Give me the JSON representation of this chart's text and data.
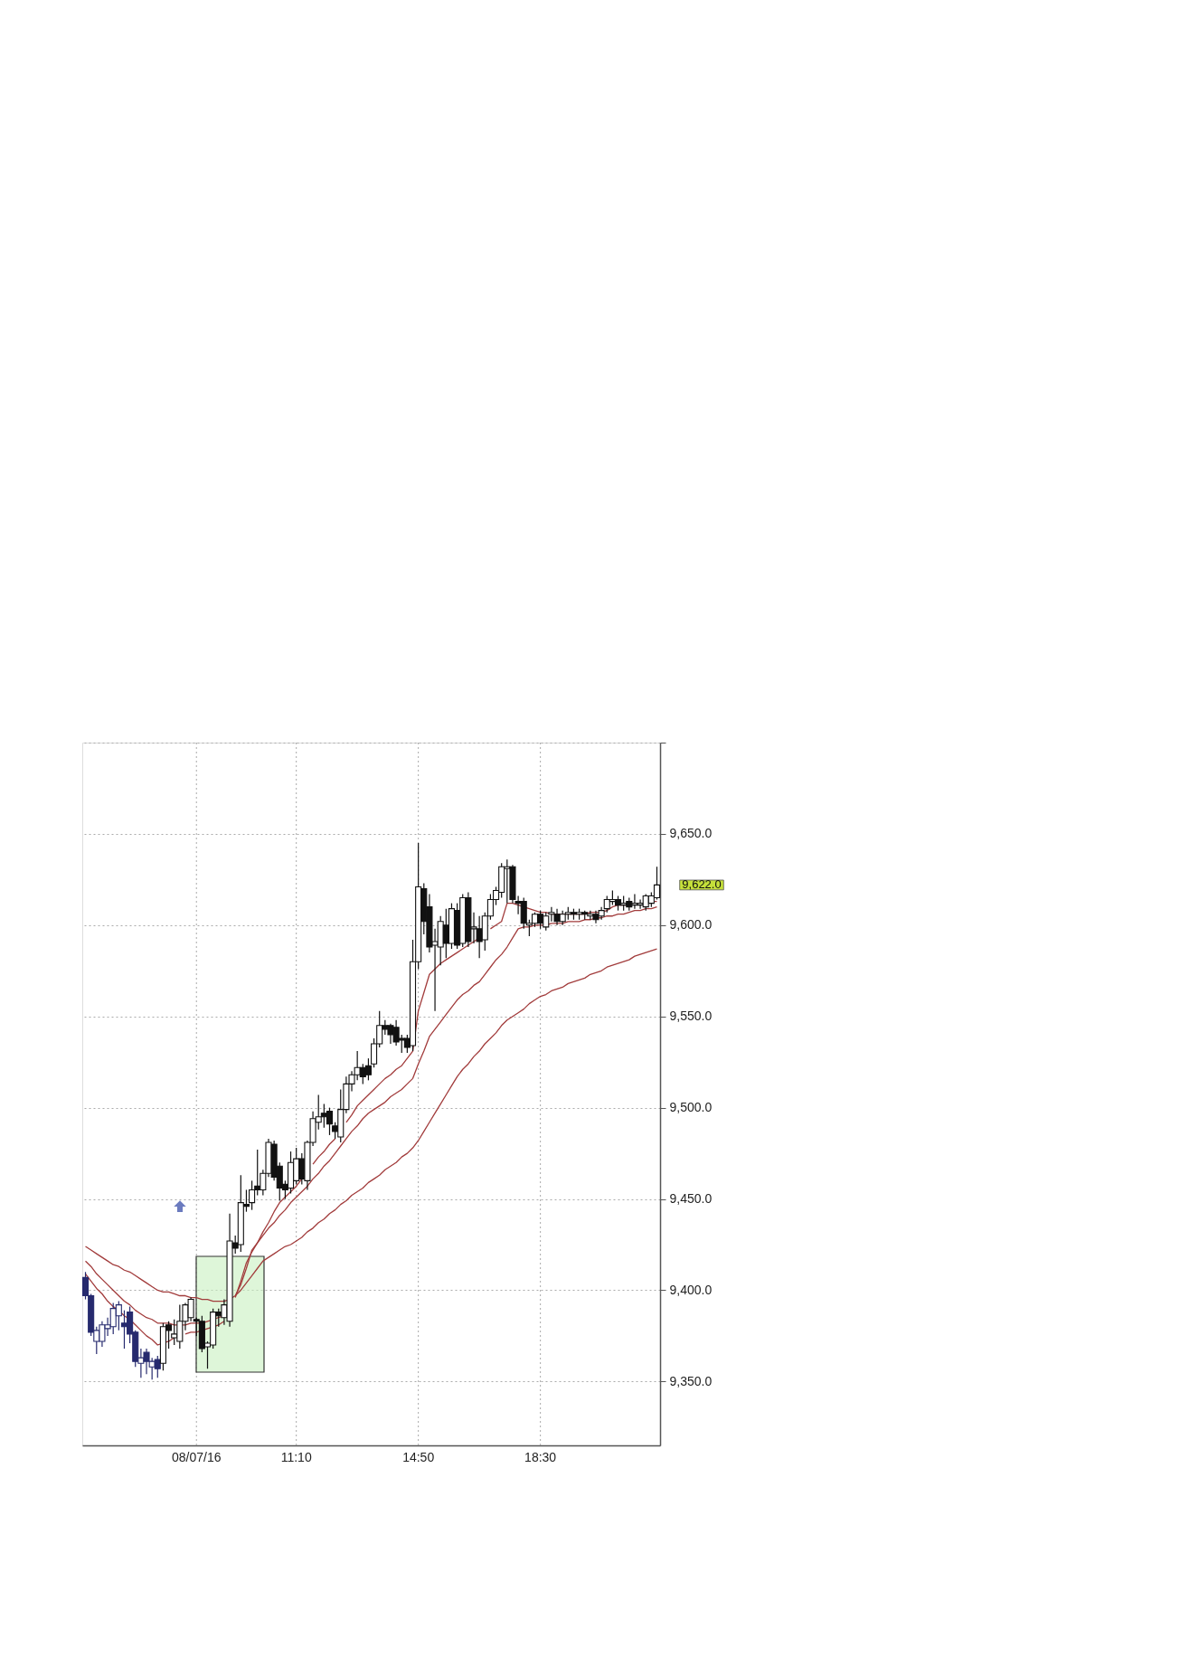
{
  "chart_data": {
    "type": "candlestick",
    "categories": [
      null,
      null,
      null,
      null,
      null,
      null,
      null,
      null,
      null,
      null,
      null,
      null,
      null,
      null,
      null,
      null,
      null,
      null,
      null,
      null,
      "08/07/16",
      null,
      null,
      null,
      null,
      null,
      null,
      null,
      null,
      null,
      null,
      null,
      null,
      null,
      null,
      null,
      null,
      null,
      "11:10",
      null,
      null,
      null,
      null,
      null,
      null,
      null,
      null,
      null,
      null,
      null,
      null,
      null,
      null,
      null,
      null,
      null,
      null,
      null,
      null,
      null,
      "14:50",
      null,
      null,
      null,
      null,
      null,
      null,
      null,
      null,
      null,
      null,
      null,
      null,
      null,
      null,
      null,
      null,
      null,
      null,
      null,
      null,
      null,
      "18:30",
      null,
      null,
      null,
      null,
      null,
      null,
      null,
      null,
      null,
      null,
      null,
      null,
      null,
      null,
      null,
      null,
      null,
      null,
      null,
      null,
      null
    ],
    "ohlc": [
      [
        9407,
        9410,
        9395,
        9397
      ],
      [
        9397,
        9398,
        9375,
        9377
      ],
      [
        9372,
        9380,
        9365,
        9378
      ],
      [
        9372,
        9383,
        9369,
        9381
      ],
      [
        9379,
        9385,
        9375,
        9381
      ],
      [
        9380,
        9393,
        9376,
        9390
      ],
      [
        9386,
        9394,
        9378,
        9392
      ],
      [
        9382,
        9389,
        9368,
        9380
      ],
      [
        9388,
        9391,
        9371,
        9376
      ],
      [
        9377,
        9378,
        9358,
        9361
      ],
      [
        9360,
        9368,
        9352,
        9363
      ],
      [
        9366,
        9368,
        9354,
        9361
      ],
      [
        9358,
        9363,
        9351,
        9361
      ],
      [
        9362,
        9364,
        9352,
        9357
      ],
      [
        9360,
        9382,
        9356,
        9380
      ],
      [
        9381,
        9383,
        9368,
        9378
      ],
      [
        9374,
        9384,
        9370,
        9376
      ],
      [
        9372,
        9392,
        9368,
        9383
      ],
      [
        9383,
        9393,
        9378,
        9392
      ],
      [
        9385,
        9396,
        9383,
        9395
      ],
      [
        9384,
        9385,
        9375,
        9383
      ],
      [
        9383,
        9386,
        9366,
        9368
      ],
      [
        9369,
        9372,
        9357,
        9371
      ],
      [
        9370,
        9390,
        9368,
        9388
      ],
      [
        9388,
        9390,
        9380,
        9386
      ],
      [
        9385,
        9395,
        9381,
        9392
      ],
      [
        9383,
        9442,
        9380,
        9427
      ],
      [
        9426,
        9430,
        9420,
        9423
      ],
      [
        9425,
        9463,
        9421,
        9448
      ],
      [
        9447,
        9455,
        9443,
        9446
      ],
      [
        9448,
        9460,
        9444,
        9455
      ],
      [
        9457,
        9477,
        9452,
        9455
      ],
      [
        9455,
        9466,
        9452,
        9464
      ],
      [
        9464,
        9483,
        9462,
        9481
      ],
      [
        9480,
        9482,
        9460,
        9462
      ],
      [
        9468,
        9470,
        9449,
        9456
      ],
      [
        9458,
        9460,
        9450,
        9455
      ],
      [
        9456,
        9476,
        9453,
        9470
      ],
      [
        9460,
        9478,
        9458,
        9472
      ],
      [
        9472,
        9475,
        9458,
        9461
      ],
      [
        9460,
        9482,
        9455,
        9481
      ],
      [
        9481,
        9498,
        9479,
        9494
      ],
      [
        9492,
        9507,
        9488,
        9495
      ],
      [
        9497,
        9502,
        9489,
        9495
      ],
      [
        9498,
        9500,
        9485,
        9491
      ],
      [
        9490,
        9492,
        9483,
        9487
      ],
      [
        9484,
        9510,
        9481,
        9499
      ],
      [
        9499,
        9517,
        9497,
        9513
      ],
      [
        9513,
        9520,
        9509,
        9518
      ],
      [
        9518,
        9531,
        9515,
        9522
      ],
      [
        9522,
        9524,
        9513,
        9517
      ],
      [
        9523,
        9527,
        9515,
        9518
      ],
      [
        9524,
        9538,
        9522,
        9535
      ],
      [
        9535,
        9553,
        9533,
        9545
      ],
      [
        9545,
        9548,
        9540,
        9543
      ],
      [
        9545,
        9546,
        9535,
        9540
      ],
      [
        9544,
        9548,
        9534,
        9536
      ],
      [
        9538,
        9540,
        9530,
        9537
      ],
      [
        9538,
        9540,
        9530,
        9533
      ],
      [
        9534,
        9592,
        9531,
        9580
      ],
      [
        9580,
        9645,
        9576,
        9621
      ],
      [
        9620,
        9623,
        9595,
        9602
      ],
      [
        9610,
        9617,
        9585,
        9588
      ],
      [
        9589,
        9598,
        9553,
        9591
      ],
      [
        9588,
        9605,
        9578,
        9602
      ],
      [
        9600,
        9609,
        9582,
        9590
      ],
      [
        9590,
        9612,
        9587,
        9609
      ],
      [
        9608,
        9612,
        9587,
        9589
      ],
      [
        9590,
        9617,
        9588,
        9615
      ],
      [
        9615,
        9618,
        9588,
        9591
      ],
      [
        9598,
        9607,
        9590,
        9599
      ],
      [
        9598,
        9605,
        9582,
        9591
      ],
      [
        9592,
        9607,
        9586,
        9605
      ],
      [
        9605,
        9617,
        9603,
        9614
      ],
      [
        9614,
        9621,
        9611,
        9619
      ],
      [
        9618,
        9634,
        9615,
        9632
      ],
      [
        9631,
        9636,
        9612,
        9632
      ],
      [
        9632,
        9633,
        9612,
        9614
      ],
      [
        9613,
        9616,
        9606,
        9612
      ],
      [
        9613,
        9615,
        9598,
        9601
      ],
      [
        9600,
        9603,
        9594,
        9601
      ],
      [
        9601,
        9607,
        9599,
        9606
      ],
      [
        9606,
        9608,
        9598,
        9601
      ],
      [
        9599,
        9607,
        9597,
        9605
      ],
      [
        9606,
        9610,
        9602,
        9607
      ],
      [
        9606,
        9609,
        9600,
        9602
      ],
      [
        9602,
        9608,
        9600,
        9606
      ],
      [
        9606,
        9610,
        9603,
        9607
      ],
      [
        9607,
        9609,
        9603,
        9606
      ],
      [
        9606,
        9609,
        9603,
        9607
      ],
      [
        9607,
        9608,
        9603,
        9606
      ],
      [
        9605,
        9608,
        9603,
        9606
      ],
      [
        9606,
        9608,
        9601,
        9603
      ],
      [
        9605,
        9610,
        9603,
        9608
      ],
      [
        9609,
        9616,
        9607,
        9614
      ],
      [
        9613,
        9619,
        9611,
        9614
      ],
      [
        9614,
        9616,
        9608,
        9611
      ],
      [
        9611,
        9616,
        9608,
        9612
      ],
      [
        9613,
        9615,
        9608,
        9610
      ],
      [
        9611,
        9617,
        9609,
        9612
      ],
      [
        9611,
        9614,
        9609,
        9612
      ],
      [
        9610,
        9617,
        9608,
        9616
      ],
      [
        9612,
        9618,
        9610,
        9616
      ],
      [
        9615,
        9632,
        9614,
        9622
      ]
    ],
    "colors": [
      "#262a6e",
      "#262a6e",
      "#262a6e",
      "#262a6e",
      "#262a6e",
      "#262a6e",
      "#262a6e",
      "#262a6e",
      "#262a6e",
      "#262a6e",
      "#262a6e",
      "#262a6e",
      "#262a6e",
      "#262a6e",
      "#111111",
      "#111111",
      "#111111",
      "#111111",
      "#111111",
      "#111111",
      "#111111",
      "#111111",
      "#111111",
      "#111111",
      "#111111",
      "#111111",
      "#111111",
      "#111111",
      "#111111",
      "#111111",
      "#111111",
      "#111111",
      "#111111",
      "#111111",
      "#111111",
      "#111111",
      "#111111",
      "#111111",
      "#111111",
      "#111111",
      "#111111",
      "#111111",
      "#111111",
      "#111111",
      "#111111",
      "#111111",
      "#111111",
      "#111111",
      "#111111",
      "#111111",
      "#111111",
      "#111111",
      "#111111",
      "#111111",
      "#111111",
      "#111111",
      "#111111",
      "#111111",
      "#111111",
      "#111111",
      "#111111",
      "#111111",
      "#111111",
      "#111111",
      "#111111",
      "#111111",
      "#111111",
      "#111111",
      "#111111",
      "#111111",
      "#111111",
      "#111111",
      "#111111",
      "#111111",
      "#111111",
      "#111111",
      "#111111",
      "#111111",
      "#111111",
      "#111111",
      "#111111",
      "#111111",
      "#111111",
      "#111111",
      "#111111",
      "#111111",
      "#111111",
      "#111111",
      "#111111",
      "#111111",
      "#111111",
      "#111111",
      "#111111",
      "#111111",
      "#111111",
      "#111111",
      "#111111",
      "#111111",
      "#111111",
      "#111111",
      "#111111",
      "#111111",
      "#111111",
      "#111111"
    ],
    "series": [
      {
        "type": "line",
        "color": "#a23c3c",
        "values": [
          9409,
          9405,
          9401,
          9398,
          9394,
          9391,
          9389,
          9386,
          9384,
          9381,
          9378,
          9375,
          9373,
          9370,
          9371,
          9372,
          9374,
          null,
          9376,
          9377,
          9377,
          9378,
          9379,
          9380,
          9381,
          9383,
          null,
          9396,
          9405,
          9415,
          9421,
          9426,
          9432,
          9437,
          9443,
          9448,
          9451,
          9454,
          9457,
          9461,
          null,
          9469,
          9473,
          9476,
          9480,
          9483,
          null,
          9492,
          9496,
          9501,
          9504,
          9507,
          9510,
          9513,
          9516,
          9518,
          9521,
          9523,
          9527,
          9531,
          9553,
          9563,
          9573,
          9576,
          9579,
          9581,
          9583,
          9585,
          9587,
          9589,
          9591,
          9593,
          null,
          9598,
          9600,
          9602,
          9612,
          9612,
          9611,
          9610,
          9609,
          9608,
          9607,
          9607,
          9606,
          9606,
          9606,
          9606,
          9606,
          9606,
          9606,
          9607,
          9607,
          9607,
          9608,
          9610,
          9611,
          9611,
          9611,
          9612,
          9612,
          9612,
          9613,
          9613
        ]
      },
      {
        "type": "line",
        "color": "#a23c3c",
        "values": [
          9416,
          9413,
          9409,
          9406,
          9403,
          9400,
          9397,
          9394,
          9392,
          9389,
          9387,
          9385,
          9384,
          9382,
          9382,
          9382,
          9381,
          9381,
          9381,
          9382,
          9382,
          9382,
          9383,
          9384,
          9385,
          9386,
          null,
          9397,
          9403,
          9412,
          9422,
          9426,
          9430,
          9434,
          9437,
          9441,
          9444,
          9448,
          9451,
          9454,
          9457,
          9461,
          9464,
          9468,
          9471,
          9475,
          9479,
          9483,
          9487,
          9490,
          9494,
          9497,
          9499,
          9501,
          9503,
          9506,
          9508,
          9510,
          9513,
          9516,
          9524,
          9531,
          9539,
          9543,
          9547,
          9551,
          9555,
          9559,
          9562,
          9564,
          9567,
          9569,
          9573,
          9577,
          9581,
          9584,
          9588,
          9593,
          9598,
          9599,
          9599,
          9600,
          9600,
          9600,
          9601,
          9601,
          9601,
          9602,
          9602,
          9602,
          9603,
          9603,
          9604,
          9604,
          9605,
          9605,
          9606,
          9606,
          9607,
          9608,
          9608,
          9609,
          9609,
          9610
        ]
      },
      {
        "type": "line",
        "color": "#a23c3c",
        "values": [
          9424,
          9422,
          9420,
          9418,
          9416,
          9414,
          9413,
          9411,
          9410,
          9408,
          9406,
          9404,
          9402,
          9400,
          9399,
          9399,
          9398,
          9397,
          9397,
          9396,
          9396,
          9395,
          9395,
          9394,
          9394,
          9394,
          9395,
          9397,
          9400,
          9404,
          9408,
          9412,
          9416,
          9418,
          9420,
          9422,
          9424,
          9425,
          9427,
          9429,
          9432,
          9434,
          9437,
          9439,
          9442,
          9444,
          9447,
          9449,
          9452,
          9454,
          9456,
          9459,
          9461,
          9463,
          9466,
          9468,
          9470,
          9473,
          9475,
          9478,
          9482,
          9487,
          9492,
          9497,
          9502,
          9507,
          9512,
          9517,
          9521,
          9524,
          9528,
          9531,
          9535,
          9538,
          9541,
          9545,
          9548,
          9550,
          9552,
          9554,
          9557,
          9559,
          9561,
          9562,
          9564,
          9565,
          9566,
          9568,
          9569,
          9570,
          9571,
          9573,
          9574,
          9575,
          9577,
          9578,
          9579,
          9580,
          9581,
          9583,
          9584,
          9585,
          9586,
          9587
        ]
      }
    ],
    "ylim": [
      9315,
      9700
    ],
    "yticks": [
      {
        "value": 9350,
        "label": "9,350.0"
      },
      {
        "value": 9400,
        "label": "9,400.0"
      },
      {
        "value": 9450,
        "label": "9,450.0"
      },
      {
        "value": 9500,
        "label": "9,500.0"
      },
      {
        "value": 9550,
        "label": "9,550.0"
      },
      {
        "value": 9600,
        "label": "9,600.0"
      },
      {
        "value": 9650,
        "label": "9,650.0"
      },
      {
        "value": 9700,
        "label": null
      }
    ],
    "annotations": [
      "9,622.0"
    ],
    "grid": true
  }
}
